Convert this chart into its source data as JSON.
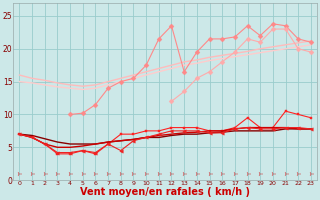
{
  "bg_color": "#cce8e8",
  "grid_color": "#99cccc",
  "xlabel": "Vent moyen/en rafales ( km/h )",
  "xlabel_color": "#cc0000",
  "xlabel_fontsize": 7,
  "x_values": [
    0,
    1,
    2,
    3,
    4,
    5,
    6,
    7,
    8,
    9,
    10,
    11,
    12,
    13,
    14,
    15,
    16,
    17,
    18,
    19,
    20,
    21,
    22,
    23
  ],
  "ylim": [
    0,
    27
  ],
  "yticks": [
    0,
    5,
    10,
    15,
    20,
    25
  ],
  "xticks": [
    0,
    1,
    2,
    3,
    4,
    5,
    6,
    7,
    8,
    9,
    10,
    11,
    12,
    13,
    14,
    15,
    16,
    17,
    18,
    19,
    20,
    21,
    22,
    23
  ],
  "lines": [
    {
      "y": [
        16.0,
        15.5,
        15.2,
        14.8,
        14.5,
        14.3,
        14.5,
        15.0,
        15.5,
        16.0,
        16.5,
        17.0,
        17.5,
        18.0,
        18.3,
        18.7,
        19.0,
        19.3,
        19.6,
        20.0,
        20.3,
        20.6,
        20.9,
        21.2
      ],
      "color": "#ffbbbb",
      "lw": 1.0,
      "marker": null,
      "ms": 0,
      "ls": "-"
    },
    {
      "y": [
        15.0,
        14.8,
        14.5,
        14.2,
        14.0,
        13.8,
        14.0,
        14.5,
        15.0,
        15.5,
        16.0,
        16.5,
        17.0,
        17.5,
        17.8,
        18.2,
        18.5,
        18.8,
        19.1,
        19.4,
        19.7,
        20.0,
        20.3,
        20.6
      ],
      "color": "#ffcccc",
      "lw": 1.0,
      "marker": null,
      "ms": 0,
      "ls": "-"
    },
    {
      "y": [
        null,
        null,
        null,
        null,
        10.0,
        10.2,
        11.5,
        14.0,
        15.0,
        15.5,
        17.5,
        21.5,
        23.5,
        16.5,
        19.5,
        21.5,
        21.5,
        21.8,
        23.5,
        22.0,
        23.8,
        23.5,
        21.5,
        21.0
      ],
      "color": "#ff8888",
      "lw": 0.8,
      "marker": "D",
      "ms": 2.5,
      "ls": "-"
    },
    {
      "y": [
        null,
        null,
        null,
        null,
        null,
        null,
        null,
        null,
        null,
        null,
        null,
        null,
        12.0,
        13.5,
        15.5,
        16.5,
        18.0,
        19.5,
        21.5,
        21.0,
        23.0,
        23.0,
        20.0,
        19.5
      ],
      "color": "#ffaaaa",
      "lw": 0.8,
      "marker": "D",
      "ms": 2.5,
      "ls": "-"
    },
    {
      "y": [
        7.0,
        6.5,
        5.5,
        4.0,
        4.0,
        4.5,
        4.0,
        5.5,
        7.0,
        7.0,
        7.5,
        7.5,
        8.0,
        8.0,
        8.0,
        7.5,
        7.5,
        8.0,
        9.5,
        8.0,
        8.0,
        10.5,
        10.0,
        9.5
      ],
      "color": "#ff2222",
      "lw": 0.8,
      "marker": "s",
      "ms": 2.0,
      "ls": "-"
    },
    {
      "y": [
        7.0,
        6.8,
        6.3,
        5.8,
        5.5,
        5.5,
        5.5,
        5.8,
        6.0,
        6.2,
        6.5,
        6.5,
        6.8,
        7.0,
        7.0,
        7.2,
        7.3,
        7.5,
        7.5,
        7.5,
        7.5,
        7.8,
        7.8,
        7.8
      ],
      "color": "#880000",
      "lw": 1.0,
      "marker": null,
      "ms": 0,
      "ls": "-"
    },
    {
      "y": [
        7.0,
        6.5,
        5.5,
        5.0,
        5.0,
        5.2,
        5.5,
        5.8,
        6.0,
        6.2,
        6.5,
        6.8,
        7.0,
        7.2,
        7.3,
        7.5,
        7.5,
        7.8,
        8.0,
        8.0,
        8.0,
        8.0,
        7.8,
        7.8
      ],
      "color": "#cc0000",
      "lw": 1.0,
      "marker": null,
      "ms": 0,
      "ls": "-"
    },
    {
      "y": [
        7.0,
        6.5,
        5.5,
        4.2,
        4.2,
        4.5,
        4.2,
        5.5,
        4.5,
        6.0,
        6.5,
        7.0,
        7.5,
        7.5,
        7.5,
        7.2,
        7.2,
        7.8,
        8.0,
        7.8,
        7.8,
        8.0,
        8.0,
        7.8
      ],
      "color": "#ee2222",
      "lw": 0.8,
      "marker": "<",
      "ms": 2.5,
      "ls": "-"
    },
    {
      "y": [
        1.0,
        1.0,
        1.0,
        1.0,
        1.0,
        1.0,
        1.0,
        1.0,
        1.0,
        1.0,
        1.0,
        1.0,
        1.0,
        1.0,
        1.0,
        1.0,
        1.0,
        1.0,
        1.0,
        1.0,
        1.0,
        1.0,
        1.0,
        1.0
      ],
      "color": "#cc0000",
      "lw": 0.5,
      "marker": "4",
      "ms": 4.0,
      "ls": "none"
    }
  ]
}
